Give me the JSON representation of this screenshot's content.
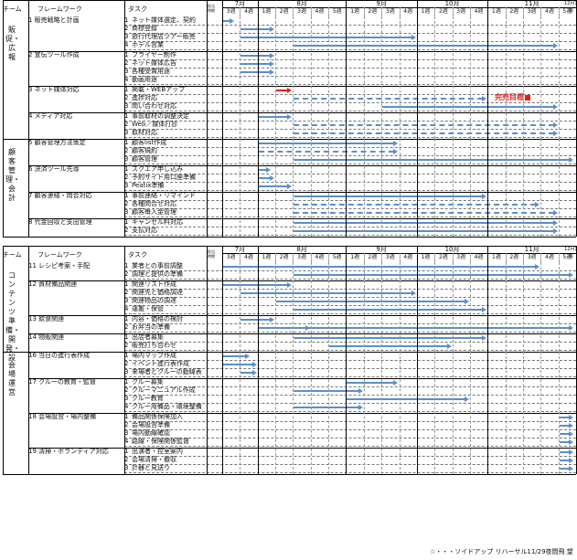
{
  "header": {
    "team": "チーム",
    "framework": "フレームワーク",
    "task": "タスク",
    "small": "担当\n時期",
    "months": [
      "7月",
      "8月",
      "9月",
      "10月",
      "11月",
      "12月1週"
    ],
    "weeks": [
      "3週",
      "4週",
      "1週",
      "2週",
      "3週",
      "4週",
      "5週",
      "1週",
      "2週",
      "3週",
      "4週",
      "1週",
      "2週",
      "3週",
      "4週",
      "1週",
      "2週",
      "3週",
      "4週",
      "5週"
    ]
  },
  "sections": [
    {
      "team": "販促・広報",
      "groups": [
        {
          "fw": "1 販売戦略と計画",
          "tasks": [
            {
              "n": "1",
              "t": "ネット媒体選定、契約"
            },
            {
              "n": "2",
              "t": "商標登録"
            },
            {
              "n": "3",
              "t": "旅行代理店ツアー販売"
            },
            {
              "n": "4",
              "t": "ホテル営業"
            }
          ]
        },
        {
          "fw": "2 宣伝ツール作成",
          "tasks": [
            {
              "n": "1",
              "t": "フライヤー制作"
            },
            {
              "n": "2",
              "t": "ネット媒体広告"
            },
            {
              "n": "3",
              "t": "各種受賞用途"
            },
            {
              "n": "4",
              "t": "動画用途"
            }
          ]
        },
        {
          "fw": "3 ネット媒体対応",
          "tasks": [
            {
              "n": "1",
              "t": "掲載・WEBアップ"
            },
            {
              "n": "2",
              "t": "進捗対応"
            },
            {
              "n": "3",
              "t": "問い合わせ対応"
            }
          ]
        },
        {
          "fw": "4 メディア対応",
          "tasks": [
            {
              "n": "1",
              "t": "事前取材の调整決定"
            },
            {
              "n": "2",
              "t": "Web／媒体打診"
            },
            {
              "n": "3",
              "t": "取材対応"
            }
          ]
        }
      ]
    },
    {
      "team": "顧客管理・会計",
      "groups": [
        {
          "fw": "5 顧客管理方法策定",
          "tasks": [
            {
              "n": "1",
              "t": "顧客list作成"
            },
            {
              "n": "2",
              "t": "顧客規約"
            },
            {
              "n": "3",
              "t": "顧客管理"
            }
          ]
        },
        {
          "fw": "6 決済ツール先導",
          "tasks": [
            {
              "n": "1",
              "t": "スクエア申し込み"
            },
            {
              "n": "2",
              "t": "予約サイト用口座準備"
            },
            {
              "n": "3",
              "t": "Peatix準備"
            }
          ]
        },
        {
          "fw": "7 顧客連絡・問合対応",
          "tasks": [
            {
              "n": "1",
              "t": "事前連絡・リマインド"
            },
            {
              "n": "2",
              "t": "各種問合せ対応"
            },
            {
              "n": "3",
              "t": "顧客毎入金管理"
            }
          ]
        },
        {
          "fw": "8 代金回収と支出管理",
          "tasks": [
            {
              "n": "1",
              "t": "キャンセル料対応"
            },
            {
              "n": "2",
              "t": "支払対応"
            }
          ]
        }
      ]
    },
    {
      "team": "コンテンツ準備・開発・設",
      "groups": [
        {
          "fw": "11 レシピ考案・手配",
          "tasks": [
            {
              "n": "1",
              "t": "業者との事前調整"
            },
            {
              "n": "2",
              "t": "調理と提供の準備"
            }
          ]
        },
        {
          "fw": "12 資材備品関連",
          "tasks": [
            {
              "n": "1",
              "t": "関連リスト作成"
            },
            {
              "n": "2",
              "t": "関連先と価格調達"
            },
            {
              "n": "3",
              "t": "関連物品の調達"
            },
            {
              "n": "4",
              "t": "運搬・保管"
            }
          ]
        },
        {
          "fw": "13 飲食関連",
          "tasks": [
            {
              "n": "1",
              "t": "内容・価格の検討"
            },
            {
              "n": "2",
              "t": "お弁当の準備"
            }
          ]
        },
        {
          "fw": "14 物販関連",
          "tasks": [
            {
              "n": "1",
              "t": "出店者募集"
            },
            {
              "n": "2",
              "t": "販売打ち合わせ"
            }
          ]
        }
      ]
    },
    {
      "team": "会場運営",
      "groups": [
        {
          "fw": "16 当日の進行表作成",
          "tasks": [
            {
              "n": "1",
              "t": "場内マップ作成"
            },
            {
              "n": "2",
              "t": "イベント進行表作成"
            },
            {
              "n": "3",
              "t": "来場者とクルーの動線表"
            }
          ]
        },
        {
          "fw": "17 クルーの教育・監督",
          "tasks": [
            {
              "n": "1",
              "t": "クルー募集"
            },
            {
              "n": "2",
              "t": "クルーマニュアル作成"
            },
            {
              "n": "3",
              "t": "クルー教育"
            },
            {
              "n": "4",
              "t": "クルー用備品・環境整備"
            }
          ]
        },
        {
          "fw": "18 会場設営・場内整備",
          "tasks": [
            {
              "n": "1",
              "t": "備品関係保険加入"
            },
            {
              "n": "2",
              "t": "会場設営準備"
            },
            {
              "n": "3",
              "t": "場内動線確認"
            },
            {
              "n": "4",
              "t": "路線・保険関係監督"
            }
          ]
        },
        {
          "fw": "19 清掃・ボランティア対応",
          "tasks": [
            {
              "n": "1",
              "t": "出演者・控室案内"
            },
            {
              "n": "2",
              "t": "会場清掃・撤収"
            },
            {
              "n": "3",
              "t": "計器と見送り"
            }
          ]
        }
      ]
    }
  ],
  "milestone": {
    "label": "完売目標"
  },
  "footer": {
    "note": "☆・・・ソイドアップ リハーサル11/29夜間飛 望"
  }
}
